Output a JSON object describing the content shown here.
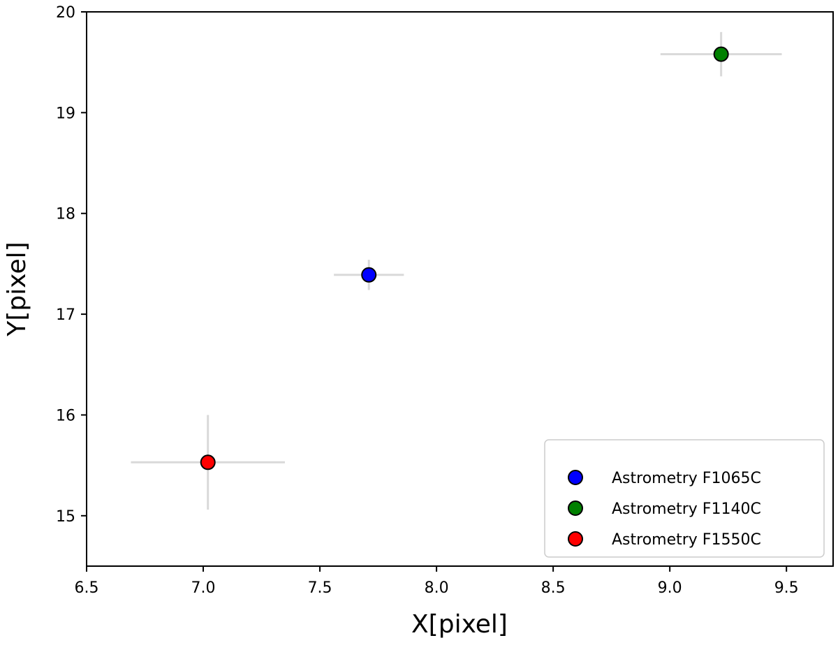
{
  "chart_data": {
    "type": "scatter",
    "xlabel": "X[pixel]",
    "ylabel": "Y[pixel]",
    "xlim": [
      6.5,
      9.7
    ],
    "ylim": [
      14.5,
      20.0
    ],
    "xticks": [
      6.5,
      7.0,
      7.5,
      8.0,
      8.5,
      9.0,
      9.5
    ],
    "yticks": [
      15,
      16,
      17,
      18,
      19,
      20
    ],
    "xtick_labels": [
      "6.5",
      "7.0",
      "7.5",
      "8.0",
      "8.5",
      "9.0",
      "9.5"
    ],
    "ytick_labels": [
      "15",
      "16",
      "17",
      "18",
      "19",
      "20"
    ],
    "grid": false,
    "legend_position": "lower-right",
    "errorbar_color": "#d9d9d9",
    "series": [
      {
        "name": "Astrometry F1065C",
        "color": "#0000ff",
        "x": 7.71,
        "y": 17.39,
        "xerr": 0.15,
        "yerr": 0.15
      },
      {
        "name": "Astrometry F1140C",
        "color": "#008000",
        "x": 9.22,
        "y": 19.58,
        "xerr": 0.26,
        "yerr": 0.22
      },
      {
        "name": "Astrometry F1550C",
        "color": "#ff0000",
        "x": 7.02,
        "y": 15.53,
        "xerr": 0.33,
        "yerr": 0.47
      }
    ]
  }
}
